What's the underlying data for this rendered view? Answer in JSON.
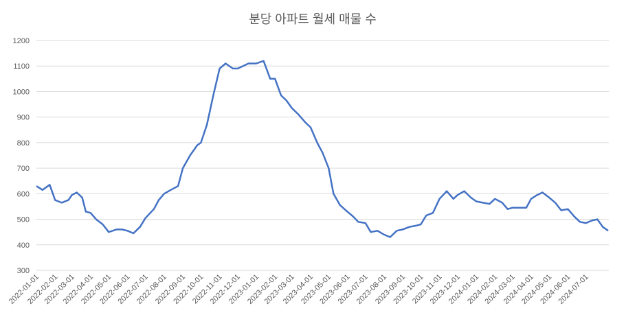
{
  "chart_data": {
    "type": "line",
    "title": "분당 아파트 월세 매물 수",
    "x": [
      "2022-01-01",
      "2022-01-11",
      "2022-01-23",
      "2022-02-01",
      "2022-02-12",
      "2022-02-23",
      "2022-03-01",
      "2022-03-09",
      "2022-03-18",
      "2022-03-24",
      "2022-04-01",
      "2022-04-10",
      "2022-04-21",
      "2022-05-01",
      "2022-05-14",
      "2022-05-23",
      "2022-06-01",
      "2022-06-11",
      "2022-06-22",
      "2022-07-01",
      "2022-07-15",
      "2022-07-23",
      "2022-08-01",
      "2022-08-12",
      "2022-08-24",
      "2022-09-01",
      "2022-09-13",
      "2022-09-25",
      "2022-10-01",
      "2022-10-11",
      "2022-10-22",
      "2022-11-01",
      "2022-11-11",
      "2022-11-23",
      "2022-12-01",
      "2022-12-10",
      "2022-12-19",
      "2023-01-01",
      "2023-01-13",
      "2023-01-24",
      "2023-02-01",
      "2023-02-11",
      "2023-02-20",
      "2023-03-01",
      "2023-03-12",
      "2023-03-23",
      "2023-04-01",
      "2023-04-12",
      "2023-04-21",
      "2023-05-01",
      "2023-05-09",
      "2023-05-20",
      "2023-06-01",
      "2023-06-11",
      "2023-06-19",
      "2023-07-01",
      "2023-07-10",
      "2023-07-21",
      "2023-08-01",
      "2023-08-11",
      "2023-08-22",
      "2023-09-01",
      "2023-09-12",
      "2023-09-23",
      "2023-10-01",
      "2023-10-10",
      "2023-10-21",
      "2023-11-01",
      "2023-11-13",
      "2023-11-24",
      "2023-12-01",
      "2023-12-12",
      "2023-12-23",
      "2024-01-01",
      "2024-01-12",
      "2024-01-23",
      "2024-02-01",
      "2024-02-13",
      "2024-02-22",
      "2024-03-01",
      "2024-03-13",
      "2024-03-24",
      "2024-04-01",
      "2024-04-11",
      "2024-04-20",
      "2024-05-01",
      "2024-05-11",
      "2024-05-21",
      "2024-06-01",
      "2024-06-12",
      "2024-06-21",
      "2024-07-01",
      "2024-07-11",
      "2024-07-20",
      "2024-07-29",
      "2024-08-07"
    ],
    "series": [
      {
        "color": "#4472c4",
        "values": [
          630,
          615,
          635,
          575,
          565,
          575,
          595,
          605,
          585,
          530,
          525,
          500,
          480,
          450,
          460,
          460,
          455,
          445,
          470,
          505,
          540,
          575,
          600,
          615,
          630,
          700,
          750,
          790,
          800,
          870,
          990,
          1090,
          1110,
          1090,
          1090,
          1100,
          1110,
          1110,
          1120,
          1050,
          1050,
          985,
          965,
          935,
          910,
          880,
          860,
          800,
          760,
          700,
          600,
          555,
          530,
          510,
          490,
          485,
          450,
          455,
          440,
          430,
          455,
          460,
          470,
          475,
          480,
          515,
          525,
          580,
          610,
          580,
          595,
          610,
          585,
          570,
          565,
          560,
          580,
          565,
          540,
          545,
          545,
          545,
          580,
          595,
          605,
          585,
          565,
          535,
          540,
          510,
          490,
          485,
          495,
          500,
          470,
          455
        ]
      }
    ],
    "xlim": [
      "2022-01-01",
      "2024-08-08"
    ],
    "xticks": [
      "2022-01-01",
      "2022-02-01",
      "2022-03-01",
      "2022-04-01",
      "2022-05-01",
      "2022-06-01",
      "2022-07-01",
      "2022-08-01",
      "2022-09-01",
      "2022-10-01",
      "2022-11-01",
      "2022-12-01",
      "2023-01-01",
      "2023-02-01",
      "2023-03-01",
      "2023-04-01",
      "2023-05-01",
      "2023-06-01",
      "2023-07-01",
      "2023-08-01",
      "2023-09-01",
      "2023-10-01",
      "2023-11-01",
      "2023-12-01",
      "2024-01-01",
      "2024-02-01",
      "2024-03-01",
      "2024-04-01",
      "2024-05-01",
      "2024-06-01",
      "2024-07-01"
    ],
    "ylim": [
      300,
      1200
    ],
    "yticks": [
      300,
      400,
      500,
      600,
      700,
      800,
      900,
      1000,
      1100,
      1200
    ],
    "grid": true
  }
}
